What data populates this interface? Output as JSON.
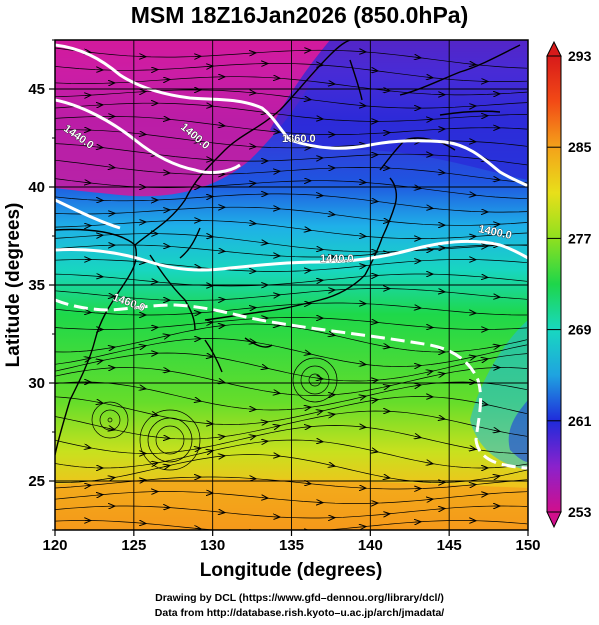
{
  "title": "MSM 18Z16Jan2026 (850.0hPa)",
  "axes": {
    "x_label": "Longitude (degrees)",
    "y_label": "Latitude  (degrees)",
    "x_ticks": [
      "120",
      "125",
      "130",
      "135",
      "140",
      "145",
      "150"
    ],
    "y_ticks": [
      "25",
      "30",
      "35",
      "40",
      "45"
    ],
    "x_range": [
      120,
      150
    ],
    "y_range": [
      22.5,
      47.5
    ]
  },
  "colorbar": {
    "ticks": [
      "293",
      "285",
      "277",
      "269",
      "261",
      "253"
    ],
    "range": [
      253,
      293
    ],
    "colors": [
      "#d10f8c",
      "#8a22cc",
      "#1f2bdb",
      "#1fa3e0",
      "#18d8c0",
      "#1ed64a",
      "#8fe01f",
      "#e8df1a",
      "#f4a21a",
      "#f24a16",
      "#d81a1a"
    ]
  },
  "contours": [
    {
      "label": "1440.0"
    },
    {
      "label": "1400.0"
    },
    {
      "label": "1360.0"
    },
    {
      "label": "1440.0"
    },
    {
      "label": "1400.0"
    },
    {
      "label": "1460.0"
    }
  ],
  "credits": {
    "line1": "Drawing by DCL (https://www.gfd–dennou.org/library/dcl/)",
    "line2": "Data from http://database.rish.kyoto–u.ac.jp/arch/jmadata/"
  }
}
